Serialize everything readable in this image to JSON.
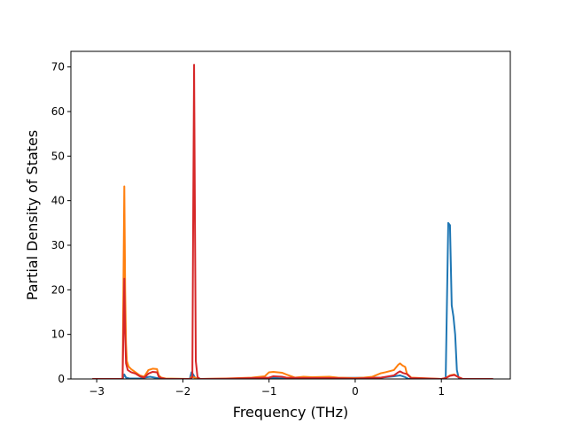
{
  "chart_data": {
    "type": "line",
    "title": "",
    "xlabel": "Frequency (THz)",
    "ylabel": "Partial Density of States",
    "xlim": [
      -3.3,
      1.8
    ],
    "ylim": [
      0,
      73.5
    ],
    "xticks": [
      -3,
      -2,
      -1,
      0,
      1
    ],
    "xtick_labels": [
      "−3",
      "−2",
      "−1",
      "0",
      "1"
    ],
    "yticks": [
      0,
      10,
      20,
      30,
      40,
      50,
      60,
      70
    ],
    "ytick_labels": [
      "0",
      "10",
      "20",
      "30",
      "40",
      "50",
      "60",
      "70"
    ],
    "grid": false,
    "legend": false,
    "series": [
      {
        "color": "#1f77b4",
        "x": [
          -3.05,
          -2.7,
          -2.68,
          -2.66,
          -2.62,
          -2.5,
          -2.45,
          -2.38,
          -2.3,
          -2.25,
          -1.92,
          -1.9,
          -1.88,
          -1.86,
          -1.83,
          -1.5,
          -1.0,
          -0.95,
          -0.85,
          0.3,
          0.45,
          0.52,
          0.58,
          0.62,
          1.02,
          1.05,
          1.08,
          1.1,
          1.12,
          1.14,
          1.16,
          1.18,
          1.2,
          1.22,
          1.24,
          1.6
        ],
        "y": [
          0,
          0,
          1.0,
          0.3,
          0.1,
          0.1,
          0.3,
          0.5,
          0.2,
          0,
          0,
          1.5,
          1.0,
          0.3,
          0,
          0,
          0.2,
          0.3,
          0.1,
          0.3,
          0.6,
          0.8,
          0.4,
          0,
          0,
          0,
          35.0,
          34.5,
          16.5,
          14.0,
          10.0,
          2.0,
          0.3,
          0,
          0,
          0
        ]
      },
      {
        "color": "#ff7f0e",
        "x": [
          -3.05,
          -2.7,
          -2.68,
          -2.67,
          -2.66,
          -2.65,
          -2.63,
          -2.6,
          -2.55,
          -2.5,
          -2.45,
          -2.4,
          -2.35,
          -2.3,
          -2.28,
          -2.25,
          -2.2,
          -1.92,
          -1.9,
          -1.88,
          -1.86,
          -1.84,
          -1.8,
          -1.5,
          -1.2,
          -1.05,
          -1.0,
          -0.95,
          -0.85,
          -0.8,
          -0.7,
          -0.6,
          -0.5,
          -0.3,
          -0.2,
          0.0,
          0.1,
          0.2,
          0.3,
          0.35,
          0.45,
          0.5,
          0.52,
          0.55,
          0.58,
          0.6,
          0.65,
          1.0,
          1.05,
          1.1,
          1.15,
          1.2,
          1.25,
          1.6
        ],
        "y": [
          0,
          0,
          43.2,
          20.0,
          8.0,
          4.0,
          2.8,
          2.2,
          1.5,
          0.8,
          0.5,
          2.0,
          2.3,
          2.2,
          0.8,
          0.3,
          0.1,
          0,
          0.5,
          0.4,
          0.3,
          0.1,
          0,
          0.1,
          0.3,
          0.6,
          1.5,
          1.6,
          1.4,
          1.0,
          0.3,
          0.5,
          0.4,
          0.5,
          0.3,
          0.2,
          0.3,
          0.5,
          1.3,
          1.5,
          2.0,
          3.2,
          3.5,
          3.0,
          2.7,
          1.2,
          0.3,
          0,
          0.2,
          0.8,
          1.0,
          0.4,
          0,
          0
        ]
      },
      {
        "color": "#d62728",
        "x": [
          -3.05,
          -2.7,
          -2.68,
          -2.67,
          -2.66,
          -2.64,
          -2.6,
          -2.55,
          -2.5,
          -2.45,
          -2.4,
          -2.35,
          -2.3,
          -2.28,
          -2.25,
          -2.2,
          -1.92,
          -1.9,
          -1.89,
          -1.88,
          -1.87,
          -1.86,
          -1.85,
          -1.83,
          -1.8,
          -1.5,
          -1.0,
          -0.95,
          -0.85,
          -0.8,
          -0.6,
          -0.3,
          0.0,
          0.3,
          0.45,
          0.5,
          0.52,
          0.56,
          0.6,
          0.65,
          1.0,
          1.05,
          1.1,
          1.15,
          1.2,
          1.25,
          1.6
        ],
        "y": [
          0,
          0,
          22.5,
          10.0,
          3.5,
          2.0,
          1.5,
          1.2,
          0.6,
          0.3,
          1.2,
          1.6,
          1.5,
          0.5,
          0.2,
          0,
          0,
          0.2,
          0.5,
          38.0,
          70.5,
          36.0,
          4.0,
          0.4,
          0,
          0.05,
          0.3,
          0.6,
          0.5,
          0.3,
          0.2,
          0.2,
          0.1,
          0.3,
          0.8,
          1.5,
          1.7,
          1.3,
          1.1,
          0.2,
          0,
          0.2,
          0.7,
          0.9,
          0.4,
          0,
          0
        ]
      }
    ]
  }
}
